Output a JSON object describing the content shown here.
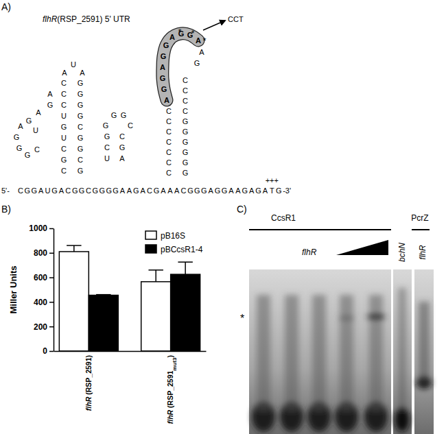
{
  "panel_a": {
    "panel_label": "A)",
    "gene": "flhR",
    "title": "(RSP_2591) 5' UTR",
    "five_prime": "5'-",
    "sequence": [
      "C",
      "G",
      "G",
      "A",
      "U",
      "G",
      "A",
      "C",
      "G",
      "G",
      "C",
      "G",
      "G",
      "G",
      "G",
      "A",
      "A",
      "G",
      "A",
      "C",
      "G",
      "A",
      "A",
      "A",
      "C",
      "G",
      "G",
      "G",
      "A",
      "G",
      "G",
      "A",
      "A",
      "G",
      "A",
      "G",
      "A",
      "T",
      "G"
    ],
    "three_prime": "-3'",
    "start_codon_marks": "+++",
    "hairpin_1": [
      "U",
      "A",
      "A",
      "C",
      "G",
      "A",
      "C",
      "G",
      "G",
      "C",
      "G",
      "A",
      "U",
      "G",
      "G",
      "A",
      "U",
      "G",
      "G",
      "C",
      "G",
      "G",
      "C",
      "U",
      "G",
      "C",
      "G",
      "G",
      "C",
      "C",
      "G"
    ],
    "hairpin_2": [
      "G",
      "G",
      "G",
      "C",
      "G",
      "C",
      "C",
      "G",
      "U",
      "A"
    ],
    "hairpin_3_loop": [
      "A",
      "G",
      "G",
      "A",
      "G",
      "G",
      "A",
      "G",
      "G",
      "A"
    ],
    "hairpin_3_rest": [
      "A",
      "G"
    ],
    "hairpin_3_left": [
      "C",
      "C",
      "C",
      "C",
      "C",
      "C",
      "C"
    ],
    "hairpin_3_right": [
      "C",
      "C",
      "C",
      "C",
      "G",
      "G",
      "G",
      "G",
      "G",
      "G"
    ],
    "stars": [
      "*",
      "*",
      "*"
    ],
    "mutation": "CCT"
  },
  "chart_data": {
    "type": "bar",
    "panel_label": "B)",
    "categories": [
      "flhR (RSP_2591)",
      "flhR (RSP_2591mut3)"
    ],
    "series": [
      {
        "name": "pB16S",
        "color": "#ffffff",
        "values": [
          810,
          565
        ],
        "errors": [
          50,
          95
        ]
      },
      {
        "name": "pBCcsR1-4",
        "color": "#000000",
        "values": [
          455,
          625
        ],
        "errors": [
          5,
          100
        ]
      }
    ],
    "y_label": "Miller Units",
    "ylim": [
      0,
      1000
    ],
    "yticks": [
      0,
      200,
      400,
      600,
      800,
      1000
    ],
    "legend": "top-right"
  },
  "panel_c": {
    "panel_label": "C)",
    "group_label": "CcsR1",
    "control_label": "PcrZ",
    "wedge_label": "flhR",
    "lane_labels": [
      "bchN",
      "flhR"
    ],
    "band_marker": "*"
  }
}
